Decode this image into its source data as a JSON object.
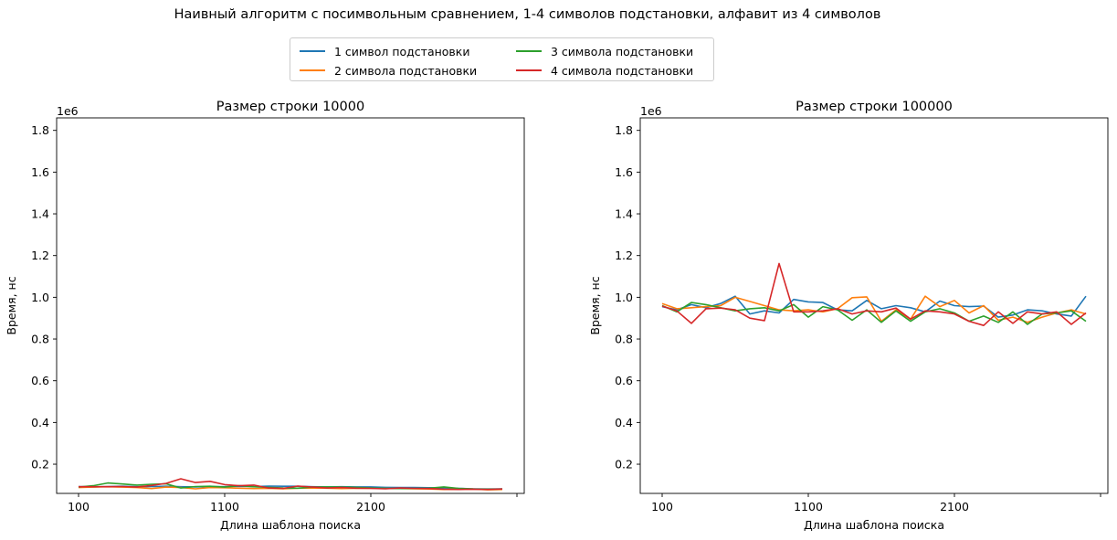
{
  "figure": {
    "suptitle": "Наивный алгоритм с посимвольным сравнением, 1-4 символов подстановки, алфавит из 4 символов"
  },
  "legend": {
    "placement": "upper-center",
    "columns": 2,
    "entries": [
      {
        "label": "1 символ подстановки",
        "color": "#1f77b4"
      },
      {
        "label": "2 символа подстановки",
        "color": "#ff7f0e"
      },
      {
        "label": "3 символа подстановки",
        "color": "#2ca02c"
      },
      {
        "label": "4 символа подстановки",
        "color": "#d62728"
      }
    ]
  },
  "chart_data": [
    {
      "type": "line",
      "title": "Размер строки 10000",
      "xlabel": "Длина шаблона поиска",
      "ylabel": "Время, нс",
      "y_offset_label": "1e6",
      "xlim": [
        -50,
        3150
      ],
      "ylim": [
        0.06,
        1.86
      ],
      "xticks": [
        100,
        1100,
        2100,
        3100
      ],
      "xtick_labels": [
        "100",
        "1100",
        "2100",
        ""
      ],
      "yticks": [
        0.2,
        0.4,
        0.6,
        0.8,
        1.0,
        1.2,
        1.4,
        1.6,
        1.8
      ],
      "ytick_labels": [
        "0.2",
        "0.4",
        "0.6",
        "0.8",
        "1.0",
        "1.2",
        "1.4",
        "1.6",
        "1.8"
      ],
      "grid": false,
      "x": [
        100,
        200,
        300,
        400,
        500,
        600,
        700,
        800,
        900,
        1000,
        1100,
        1200,
        1300,
        1400,
        1500,
        1600,
        1700,
        1800,
        1900,
        2000,
        2100,
        2200,
        2300,
        2400,
        2500,
        2600,
        2700,
        2800,
        2900,
        3000
      ],
      "series": [
        {
          "name": "1 символ подстановки",
          "color": "#1f77b4",
          "values": [
            0.093,
            0.091,
            0.093,
            0.094,
            0.092,
            0.093,
            0.094,
            0.092,
            0.091,
            0.093,
            0.092,
            0.094,
            0.093,
            0.095,
            0.094,
            0.094,
            0.092,
            0.091,
            0.092,
            0.091,
            0.091,
            0.089,
            0.088,
            0.088,
            0.087,
            0.086,
            0.084,
            0.082,
            0.081,
            0.082
          ]
        },
        {
          "name": "2 символа подстановки",
          "color": "#ff7f0e",
          "values": [
            0.088,
            0.09,
            0.092,
            0.09,
            0.088,
            0.083,
            0.09,
            0.088,
            0.082,
            0.088,
            0.087,
            0.085,
            0.083,
            0.084,
            0.082,
            0.085,
            0.086,
            0.085,
            0.083,
            0.084,
            0.085,
            0.084,
            0.083,
            0.082,
            0.081,
            0.079,
            0.08,
            0.081,
            0.077,
            0.079
          ]
        },
        {
          "name": "3 символа подстановки",
          "color": "#2ca02c",
          "values": [
            0.09,
            0.097,
            0.11,
            0.105,
            0.1,
            0.104,
            0.106,
            0.086,
            0.093,
            0.094,
            0.09,
            0.097,
            0.092,
            0.089,
            0.086,
            0.085,
            0.09,
            0.091,
            0.09,
            0.089,
            0.086,
            0.084,
            0.083,
            0.084,
            0.085,
            0.091,
            0.084,
            0.081,
            0.08,
            0.081
          ]
        },
        {
          "name": "4 символа подстановки",
          "color": "#d62728",
          "values": [
            0.092,
            0.092,
            0.092,
            0.093,
            0.09,
            0.098,
            0.108,
            0.13,
            0.112,
            0.118,
            0.102,
            0.097,
            0.1,
            0.086,
            0.084,
            0.095,
            0.09,
            0.086,
            0.088,
            0.085,
            0.084,
            0.082,
            0.086,
            0.084,
            0.083,
            0.08,
            0.079,
            0.08,
            0.079,
            0.081
          ]
        }
      ]
    },
    {
      "type": "line",
      "title": "Размер строки 100000",
      "xlabel": "Длина шаблона поиска",
      "ylabel": "Время, нс",
      "y_offset_label": "1e6",
      "xlim": [
        -50,
        3150
      ],
      "ylim": [
        0.06,
        1.86
      ],
      "xticks": [
        100,
        1100,
        2100,
        3100
      ],
      "xtick_labels": [
        "100",
        "1100",
        "2100",
        ""
      ],
      "yticks": [
        0.2,
        0.4,
        0.6,
        0.8,
        1.0,
        1.2,
        1.4,
        1.6,
        1.8
      ],
      "ytick_labels": [
        "0.2",
        "0.4",
        "0.6",
        "0.8",
        "1.0",
        "1.2",
        "1.4",
        "1.6",
        "1.8"
      ],
      "grid": false,
      "x": [
        100,
        200,
        300,
        400,
        500,
        600,
        700,
        800,
        900,
        1000,
        1100,
        1200,
        1300,
        1400,
        1500,
        1600,
        1700,
        1800,
        1900,
        2000,
        2100,
        2200,
        2300,
        2400,
        2500,
        2600,
        2700,
        2800,
        2900,
        3000
      ],
      "series": [
        {
          "name": "1 символ подстановки",
          "color": "#1f77b4",
          "values": [
            0.955,
            0.94,
            0.965,
            0.95,
            0.97,
            1.005,
            0.92,
            0.935,
            0.925,
            0.99,
            0.978,
            0.975,
            0.94,
            0.935,
            0.985,
            0.945,
            0.96,
            0.95,
            0.93,
            0.982,
            0.96,
            0.955,
            0.958,
            0.905,
            0.915,
            0.94,
            0.935,
            0.92,
            0.91,
            1.005
          ]
        },
        {
          "name": "2 символа подстановки",
          "color": "#ff7f0e",
          "values": [
            0.97,
            0.945,
            0.95,
            0.955,
            0.96,
            1.0,
            0.98,
            0.96,
            0.94,
            0.935,
            0.94,
            0.93,
            0.945,
            0.998,
            1.002,
            0.885,
            0.94,
            0.895,
            1.005,
            0.955,
            0.985,
            0.925,
            0.96,
            0.89,
            0.905,
            0.88,
            0.905,
            0.925,
            0.94,
            0.92
          ]
        },
        {
          "name": "3 символа подстановки",
          "color": "#2ca02c",
          "values": [
            0.96,
            0.93,
            0.975,
            0.965,
            0.95,
            0.935,
            0.945,
            0.95,
            0.935,
            0.965,
            0.905,
            0.955,
            0.94,
            0.89,
            0.94,
            0.88,
            0.935,
            0.885,
            0.93,
            0.945,
            0.925,
            0.885,
            0.91,
            0.88,
            0.93,
            0.87,
            0.92,
            0.925,
            0.935,
            0.885
          ]
        },
        {
          "name": "4 символа подстановки",
          "color": "#d62728",
          "values": [
            0.958,
            0.935,
            0.875,
            0.945,
            0.948,
            0.94,
            0.9,
            0.888,
            1.162,
            0.93,
            0.93,
            0.935,
            0.945,
            0.92,
            0.935,
            0.93,
            0.948,
            0.895,
            0.935,
            0.93,
            0.92,
            0.885,
            0.865,
            0.93,
            0.875,
            0.93,
            0.92,
            0.93,
            0.87,
            0.925
          ]
        }
      ]
    }
  ]
}
